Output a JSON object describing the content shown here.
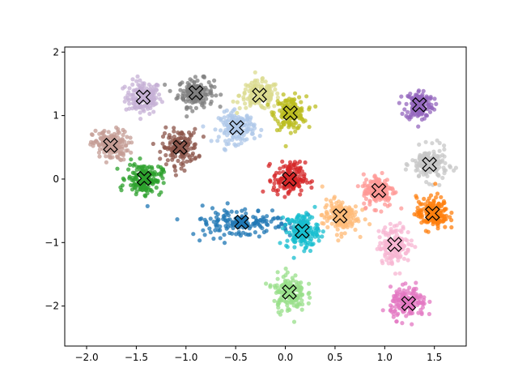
{
  "chart_data": {
    "type": "scatter",
    "title": "",
    "xlabel": "",
    "ylabel": "",
    "xlim": [
      -2.22,
      1.82
    ],
    "ylim": [
      -2.63,
      2.08
    ],
    "x_ticks": [
      -2.0,
      -1.5,
      -1.0,
      -0.5,
      0.0,
      0.5,
      1.0,
      1.5
    ],
    "x_tick_labels": [
      "−2.0",
      "−1.5",
      "−1.0",
      "−0.5",
      "0.0",
      "0.5",
      "1.0",
      "1.5"
    ],
    "y_ticks": [
      -2,
      -1,
      0,
      1,
      2
    ],
    "y_tick_labels": [
      "−2",
      "−1",
      "0",
      "1",
      "2"
    ],
    "grid": false,
    "legend": "none",
    "centroid_marker": "X",
    "clusters": [
      {
        "color": "#c5b0d5",
        "center": [
          -1.43,
          1.29
        ],
        "spread": [
          0.09,
          0.13
        ]
      },
      {
        "color": "#7f7f7f",
        "center": [
          -0.9,
          1.36
        ],
        "spread": [
          0.09,
          0.11
        ]
      },
      {
        "color": "#dbdb8d",
        "center": [
          -0.26,
          1.32
        ],
        "spread": [
          0.1,
          0.11
        ]
      },
      {
        "color": "#bcbd22",
        "center": [
          0.05,
          1.04
        ],
        "spread": [
          0.08,
          0.13
        ]
      },
      {
        "color": "#9467bd",
        "center": [
          1.35,
          1.17
        ],
        "spread": [
          0.07,
          0.12
        ]
      },
      {
        "color": "#c49c94",
        "center": [
          -1.76,
          0.53
        ],
        "spread": [
          0.09,
          0.12
        ]
      },
      {
        "color": "#8c564b",
        "center": [
          -1.06,
          0.5
        ],
        "spread": [
          0.09,
          0.14
        ]
      },
      {
        "color": "#aec7e8",
        "center": [
          -0.49,
          0.81
        ],
        "spread": [
          0.09,
          0.12
        ]
      },
      {
        "color": "#c7c7c7",
        "center": [
          1.45,
          0.23
        ],
        "spread": [
          0.09,
          0.13
        ]
      },
      {
        "color": "#2ca02c",
        "center": [
          -1.42,
          0.01
        ],
        "spread": [
          0.09,
          0.12
        ]
      },
      {
        "color": "#d62728",
        "center": [
          0.04,
          0.0
        ],
        "spread": [
          0.08,
          0.13
        ]
      },
      {
        "color": "#ff9896",
        "center": [
          0.94,
          -0.18
        ],
        "spread": [
          0.08,
          0.13
        ]
      },
      {
        "color": "#1f77b4",
        "center": [
          -0.44,
          -0.68
        ],
        "spread": [
          0.28,
          0.12
        ]
      },
      {
        "color": "#17becf",
        "center": [
          0.17,
          -0.82
        ],
        "spread": [
          0.08,
          0.14
        ]
      },
      {
        "color": "#ffbb78",
        "center": [
          0.55,
          -0.58
        ],
        "spread": [
          0.09,
          0.13
        ]
      },
      {
        "color": "#ff7f0e",
        "center": [
          1.48,
          -0.54
        ],
        "spread": [
          0.08,
          0.13
        ]
      },
      {
        "color": "#f7b6d2",
        "center": [
          1.1,
          -1.03
        ],
        "spread": [
          0.08,
          0.15
        ]
      },
      {
        "color": "#98df8a",
        "center": [
          0.04,
          -1.78
        ],
        "spread": [
          0.08,
          0.15
        ]
      },
      {
        "color": "#e377c2",
        "center": [
          1.24,
          -1.96
        ],
        "spread": [
          0.09,
          0.12
        ]
      }
    ]
  }
}
